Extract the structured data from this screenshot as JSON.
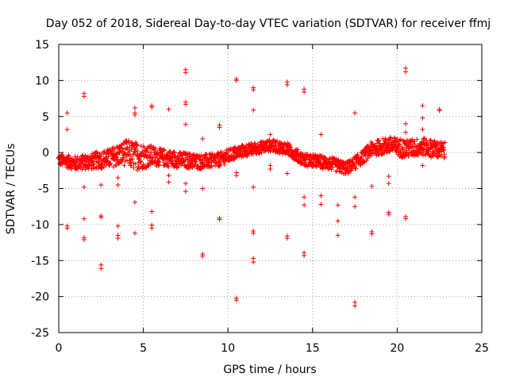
{
  "chart_data": {
    "type": "scatter",
    "title": "Day 052 of 2018, Sidereal Day-to-day VTEC variation (SDTVAR) for receiver ffmj",
    "xlabel": "GPS time / hours",
    "ylabel": "SDTVAR / TECUs",
    "xlim": [
      0,
      25
    ],
    "ylim": [
      -25,
      15
    ],
    "xticks": [
      0,
      5,
      10,
      15,
      20,
      25
    ],
    "yticks": [
      -25,
      -20,
      -15,
      -10,
      -5,
      0,
      5,
      10,
      15
    ],
    "grid": true,
    "marker": "+",
    "color": "#ff0000",
    "band": {
      "x_range": [
        0.0,
        22.8
      ],
      "x_step": 0.04,
      "profile": [
        [
          0.0,
          -1.0
        ],
        [
          1.0,
          -1.5
        ],
        [
          2.0,
          -1.2
        ],
        [
          3.0,
          -0.8
        ],
        [
          4.0,
          0.0
        ],
        [
          4.5,
          -0.5
        ],
        [
          5.5,
          -0.5
        ],
        [
          7.0,
          -1.0
        ],
        [
          8.5,
          -1.3
        ],
        [
          9.5,
          -1.0
        ],
        [
          10.5,
          0.0
        ],
        [
          11.5,
          0.5
        ],
        [
          12.5,
          1.0
        ],
        [
          13.5,
          0.5
        ],
        [
          14.5,
          -1.0
        ],
        [
          16.0,
          -1.5
        ],
        [
          17.0,
          -2.2
        ],
        [
          17.8,
          -1.0
        ],
        [
          18.5,
          0.5
        ],
        [
          19.5,
          1.0
        ],
        [
          20.5,
          0.5
        ],
        [
          21.5,
          0.8
        ],
        [
          22.8,
          0.2
        ]
      ],
      "spread": [
        [
          0.0,
          0.8
        ],
        [
          3.0,
          1.3
        ],
        [
          4.5,
          2.0
        ],
        [
          6.0,
          1.2
        ],
        [
          9.0,
          1.0
        ],
        [
          12.0,
          0.8
        ],
        [
          15.0,
          0.9
        ],
        [
          18.0,
          0.9
        ],
        [
          20.0,
          1.3
        ],
        [
          22.8,
          1.2
        ]
      ]
    },
    "outliers": [
      [
        0.5,
        5.5
      ],
      [
        0.5,
        3.2
      ],
      [
        0.5,
        -10.2
      ],
      [
        0.5,
        -10.5
      ],
      [
        1.5,
        8.2
      ],
      [
        1.5,
        7.8
      ],
      [
        1.5,
        -4.8
      ],
      [
        1.5,
        -9.2
      ],
      [
        1.5,
        -11.8
      ],
      [
        1.5,
        -12.1
      ],
      [
        2.5,
        -9.0
      ],
      [
        2.5,
        -8.8
      ],
      [
        2.5,
        -15.6
      ],
      [
        2.5,
        -16.1
      ],
      [
        2.5,
        -4.5
      ],
      [
        3.5,
        -11.5
      ],
      [
        3.5,
        -11.9
      ],
      [
        3.5,
        -10.2
      ],
      [
        3.5,
        -4.5
      ],
      [
        3.5,
        -3.5
      ],
      [
        4.5,
        6.2
      ],
      [
        4.5,
        5.5
      ],
      [
        4.5,
        5.2
      ],
      [
        4.5,
        -6.9
      ],
      [
        4.5,
        -11.2
      ],
      [
        5.5,
        6.5
      ],
      [
        5.5,
        6.3
      ],
      [
        5.5,
        -8.2
      ],
      [
        5.5,
        -10.1
      ],
      [
        5.5,
        -10.5
      ],
      [
        6.5,
        6.0
      ],
      [
        6.5,
        -3.2
      ],
      [
        6.5,
        -4.1
      ],
      [
        7.5,
        11.5
      ],
      [
        7.5,
        11.1
      ],
      [
        7.5,
        7.0
      ],
      [
        7.5,
        6.7
      ],
      [
        7.5,
        3.9
      ],
      [
        7.5,
        -4.3
      ],
      [
        7.5,
        -5.4
      ],
      [
        8.5,
        1.9
      ],
      [
        8.5,
        -5.0
      ],
      [
        8.5,
        -14.1
      ],
      [
        8.5,
        -14.4
      ],
      [
        9.5,
        3.8
      ],
      [
        9.5,
        3.5
      ],
      [
        9.5,
        -9.3
      ],
      [
        9.5,
        -9.1
      ],
      [
        10.5,
        10.2
      ],
      [
        10.5,
        10.0
      ],
      [
        10.5,
        -2.8
      ],
      [
        10.5,
        -3.2
      ],
      [
        10.5,
        -20.2
      ],
      [
        10.5,
        -20.5
      ],
      [
        11.5,
        9.0
      ],
      [
        11.5,
        8.7
      ],
      [
        11.5,
        5.9
      ],
      [
        11.5,
        -4.8
      ],
      [
        11.5,
        -10.9
      ],
      [
        11.5,
        -11.2
      ],
      [
        11.5,
        -14.7
      ],
      [
        11.5,
        -15.2
      ],
      [
        12.5,
        2.5
      ],
      [
        12.5,
        -1.8
      ],
      [
        12.5,
        -2.3
      ],
      [
        13.5,
        9.8
      ],
      [
        13.5,
        9.4
      ],
      [
        13.5,
        -2.9
      ],
      [
        13.5,
        -11.6
      ],
      [
        13.5,
        -11.9
      ],
      [
        14.5,
        8.8
      ],
      [
        14.5,
        8.4
      ],
      [
        14.5,
        -6.2
      ],
      [
        14.5,
        -7.3
      ],
      [
        14.5,
        -13.9
      ],
      [
        14.5,
        -14.3
      ],
      [
        15.5,
        2.5
      ],
      [
        15.5,
        -6.0
      ],
      [
        15.5,
        -7.2
      ],
      [
        16.5,
        -7.3
      ],
      [
        16.5,
        -9.5
      ],
      [
        16.5,
        -11.5
      ],
      [
        17.5,
        5.5
      ],
      [
        17.5,
        -6.2
      ],
      [
        17.5,
        -7.5
      ],
      [
        17.5,
        -20.8
      ],
      [
        17.5,
        -21.3
      ],
      [
        18.5,
        -4.7
      ],
      [
        18.5,
        -11.0
      ],
      [
        18.5,
        -11.3
      ],
      [
        19.5,
        -3.3
      ],
      [
        19.5,
        -4.3
      ],
      [
        19.5,
        -8.3
      ],
      [
        19.5,
        -8.6
      ],
      [
        20.5,
        11.7
      ],
      [
        20.5,
        11.2
      ],
      [
        20.5,
        4.0
      ],
      [
        20.5,
        2.8
      ],
      [
        20.5,
        -8.9
      ],
      [
        20.5,
        -9.2
      ],
      [
        21.5,
        6.5
      ],
      [
        21.5,
        4.8
      ],
      [
        21.5,
        3.2
      ],
      [
        21.5,
        -1.8
      ],
      [
        22.5,
        6.0
      ],
      [
        22.5,
        5.8
      ]
    ]
  }
}
